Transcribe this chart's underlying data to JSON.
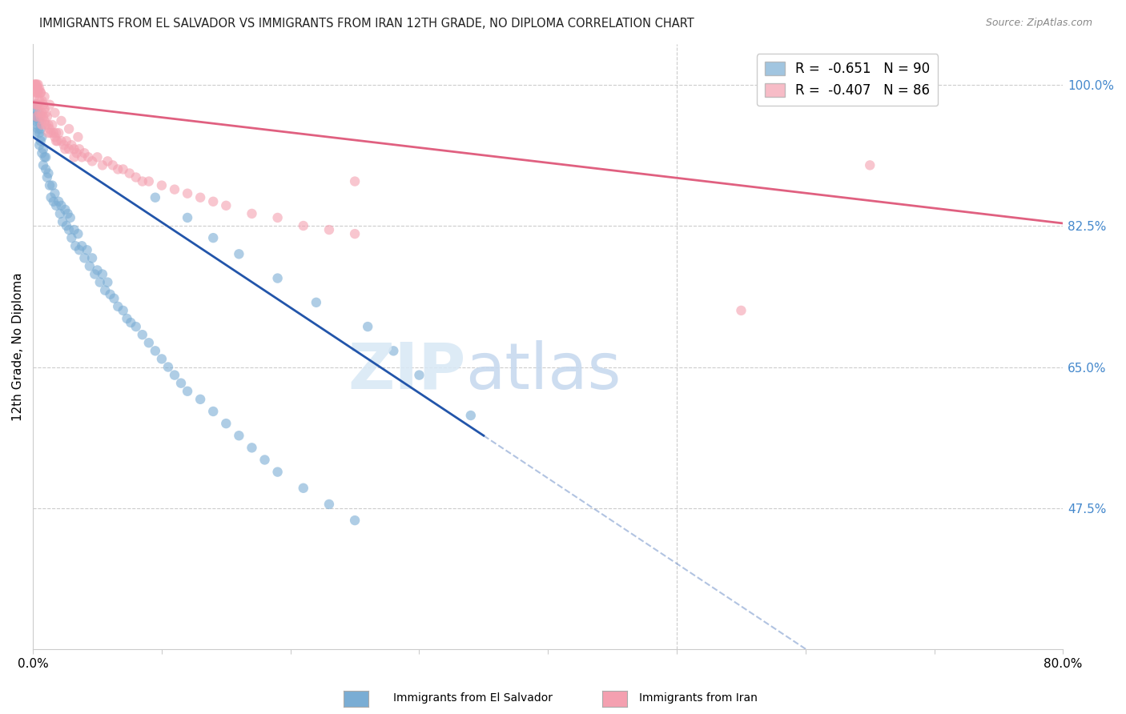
{
  "title": "IMMIGRANTS FROM EL SALVADOR VS IMMIGRANTS FROM IRAN 12TH GRADE, NO DIPLOMA CORRELATION CHART",
  "source": "Source: ZipAtlas.com",
  "ylabel": "12th Grade, No Diploma",
  "y_ticks": [
    "100.0%",
    "82.5%",
    "65.0%",
    "47.5%"
  ],
  "y_tick_vals": [
    1.0,
    0.825,
    0.65,
    0.475
  ],
  "xlim": [
    0.0,
    0.8
  ],
  "ylim": [
    0.3,
    1.05
  ],
  "blue_color": "#7aadd4",
  "pink_color": "#f4a0b0",
  "blue_line_color": "#2255AA",
  "pink_line_color": "#e06080",
  "blue_R": -0.651,
  "blue_N": 90,
  "pink_R": -0.407,
  "pink_N": 86,
  "blue_line_x0": 0.0,
  "blue_line_y0": 0.935,
  "blue_line_x1": 0.35,
  "blue_line_y1": 0.565,
  "pink_line_x0": 0.0,
  "pink_line_y0": 0.978,
  "pink_line_x1": 0.8,
  "pink_line_y1": 0.828,
  "blue_scatter_x": [
    0.001,
    0.001,
    0.002,
    0.002,
    0.002,
    0.003,
    0.003,
    0.003,
    0.004,
    0.004,
    0.005,
    0.005,
    0.005,
    0.006,
    0.006,
    0.007,
    0.007,
    0.008,
    0.008,
    0.009,
    0.01,
    0.01,
    0.011,
    0.012,
    0.013,
    0.014,
    0.015,
    0.016,
    0.017,
    0.018,
    0.02,
    0.021,
    0.022,
    0.023,
    0.025,
    0.026,
    0.027,
    0.028,
    0.029,
    0.03,
    0.032,
    0.033,
    0.035,
    0.036,
    0.038,
    0.04,
    0.042,
    0.044,
    0.046,
    0.048,
    0.05,
    0.052,
    0.054,
    0.056,
    0.058,
    0.06,
    0.063,
    0.066,
    0.07,
    0.073,
    0.076,
    0.08,
    0.085,
    0.09,
    0.095,
    0.1,
    0.105,
    0.11,
    0.115,
    0.12,
    0.13,
    0.14,
    0.15,
    0.16,
    0.17,
    0.18,
    0.19,
    0.21,
    0.23,
    0.25,
    0.095,
    0.12,
    0.14,
    0.16,
    0.19,
    0.22,
    0.26,
    0.28,
    0.3,
    0.34
  ],
  "blue_scatter_y": [
    0.975,
    0.96,
    0.97,
    0.955,
    0.94,
    0.96,
    0.975,
    0.95,
    0.965,
    0.945,
    0.955,
    0.94,
    0.925,
    0.945,
    0.93,
    0.935,
    0.915,
    0.92,
    0.9,
    0.91,
    0.895,
    0.91,
    0.885,
    0.89,
    0.875,
    0.86,
    0.875,
    0.855,
    0.865,
    0.85,
    0.855,
    0.84,
    0.85,
    0.83,
    0.845,
    0.825,
    0.84,
    0.82,
    0.835,
    0.81,
    0.82,
    0.8,
    0.815,
    0.795,
    0.8,
    0.785,
    0.795,
    0.775,
    0.785,
    0.765,
    0.77,
    0.755,
    0.765,
    0.745,
    0.755,
    0.74,
    0.735,
    0.725,
    0.72,
    0.71,
    0.705,
    0.7,
    0.69,
    0.68,
    0.67,
    0.66,
    0.65,
    0.64,
    0.63,
    0.62,
    0.61,
    0.595,
    0.58,
    0.565,
    0.55,
    0.535,
    0.52,
    0.5,
    0.48,
    0.46,
    0.86,
    0.835,
    0.81,
    0.79,
    0.76,
    0.73,
    0.7,
    0.67,
    0.64,
    0.59
  ],
  "pink_scatter_x": [
    0.001,
    0.001,
    0.002,
    0.002,
    0.002,
    0.003,
    0.003,
    0.003,
    0.004,
    0.004,
    0.004,
    0.005,
    0.005,
    0.005,
    0.006,
    0.006,
    0.006,
    0.007,
    0.007,
    0.008,
    0.008,
    0.009,
    0.009,
    0.01,
    0.01,
    0.011,
    0.012,
    0.013,
    0.014,
    0.015,
    0.016,
    0.017,
    0.018,
    0.019,
    0.02,
    0.022,
    0.024,
    0.026,
    0.028,
    0.03,
    0.032,
    0.034,
    0.036,
    0.038,
    0.04,
    0.043,
    0.046,
    0.05,
    0.054,
    0.058,
    0.062,
    0.066,
    0.07,
    0.075,
    0.08,
    0.085,
    0.09,
    0.1,
    0.11,
    0.12,
    0.13,
    0.14,
    0.15,
    0.17,
    0.19,
    0.21,
    0.23,
    0.25,
    0.003,
    0.007,
    0.012,
    0.018,
    0.025,
    0.032,
    0.002,
    0.004,
    0.006,
    0.009,
    0.013,
    0.017,
    0.022,
    0.028,
    0.035,
    0.55,
    0.65,
    0.25
  ],
  "pink_scatter_y": [
    1.0,
    0.985,
    1.0,
    0.99,
    0.975,
    1.0,
    0.99,
    0.975,
    1.0,
    0.99,
    0.975,
    0.995,
    0.98,
    0.965,
    0.99,
    0.975,
    0.96,
    0.98,
    0.965,
    0.975,
    0.96,
    0.97,
    0.955,
    0.965,
    0.95,
    0.96,
    0.95,
    0.945,
    0.94,
    0.95,
    0.94,
    0.935,
    0.94,
    0.93,
    0.94,
    0.93,
    0.925,
    0.93,
    0.92,
    0.925,
    0.92,
    0.915,
    0.92,
    0.91,
    0.915,
    0.91,
    0.905,
    0.91,
    0.9,
    0.905,
    0.9,
    0.895,
    0.895,
    0.89,
    0.885,
    0.88,
    0.88,
    0.875,
    0.87,
    0.865,
    0.86,
    0.855,
    0.85,
    0.84,
    0.835,
    0.825,
    0.82,
    0.815,
    0.96,
    0.95,
    0.94,
    0.93,
    0.92,
    0.91,
    1.0,
    0.995,
    0.99,
    0.985,
    0.975,
    0.965,
    0.955,
    0.945,
    0.935,
    0.72,
    0.9,
    0.88
  ]
}
